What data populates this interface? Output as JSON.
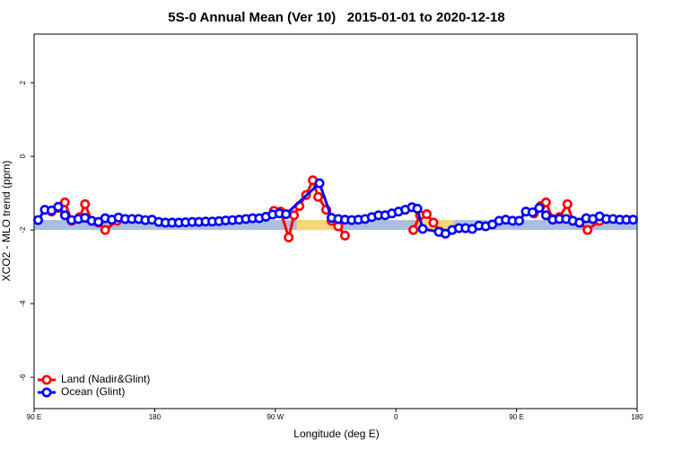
{
  "chart_data": {
    "type": "line",
    "title": "5S-0 Annual Mean (Ver 10)   2015-01-01 to 2020-12-18",
    "xlabel": "Longitude (deg E)",
    "ylabel": "XCO2 - MLO trend (ppm)",
    "xlim": [
      90,
      540
    ],
    "ylim": [
      -6.85,
      3.32
    ],
    "xticks": [
      {
        "value": 90,
        "label": "90 E"
      },
      {
        "value": 180,
        "label": "180"
      },
      {
        "value": 270,
        "label": "90 W"
      },
      {
        "value": 360,
        "label": "0"
      },
      {
        "value": 450,
        "label": "90 E"
      },
      {
        "value": 540,
        "label": "180"
      }
    ],
    "yticks": [
      -6,
      -4,
      -2,
      0,
      2
    ],
    "legend": "bottom-left",
    "bands": [
      {
        "color": "#aabfe0",
        "xlim": [
          90,
          540
        ],
        "ylim": [
          -2,
          -1.73
        ]
      },
      {
        "color": "#f7d77c",
        "xlim": [
          286,
          314
        ],
        "ylim": [
          -2,
          -1.73
        ]
      },
      {
        "color": "#f7d77c",
        "xlim": [
          376,
          403
        ],
        "ylim": [
          -2,
          -1.73
        ]
      }
    ],
    "series": [
      {
        "name": "Land (Nadir&Glint)",
        "color": "#ff0000",
        "x": [
          103,
          108,
          113,
          118,
          124,
          128,
          133,
          138,
          143,
          152,
          200,
          269,
          274,
          280,
          284,
          288,
          293,
          298,
          302,
          308,
          312,
          317,
          322,
          350,
          373,
          378,
          383,
          388,
          393,
          430,
          463,
          468,
          472,
          477,
          482,
          488,
          492,
          497,
          503,
          512
        ],
        "values": [
          -1.5,
          -1.4,
          -1.25,
          -1.75,
          -1.65,
          -1.3,
          -1.75,
          -1.8,
          -2.0,
          -1.75,
          null,
          -1.48,
          -1.5,
          -2.2,
          -1.6,
          -1.35,
          -1.05,
          -0.65,
          -1.1,
          -1.45,
          -1.75,
          -1.9,
          -2.15,
          null,
          -2.0,
          -1.6,
          -1.57,
          -1.8,
          -2.05,
          null,
          -1.55,
          -1.35,
          -1.25,
          -1.7,
          -1.65,
          -1.3,
          -1.75,
          -1.8,
          -2.0,
          -1.75
        ]
      },
      {
        "name": "Ocean (Glint)",
        "color": "#0000ff",
        "x": [
          93,
          98,
          103,
          108,
          113,
          118,
          123,
          128,
          133,
          138,
          143,
          148,
          153,
          158,
          163,
          168,
          173,
          178,
          183,
          188,
          193,
          198,
          203,
          208,
          213,
          218,
          223,
          228,
          233,
          238,
          243,
          248,
          253,
          258,
          263,
          268,
          273,
          278,
          303,
          312,
          317,
          322,
          327,
          332,
          337,
          342,
          347,
          352,
          357,
          362,
          367,
          372,
          376,
          380,
          392,
          397,
          402,
          407,
          412,
          417,
          422,
          427,
          432,
          437,
          442,
          447,
          452,
          457,
          462,
          467,
          472,
          477,
          482,
          487,
          492,
          497,
          502,
          507,
          512,
          517,
          522,
          527,
          532,
          537
        ],
        "values": [
          -1.73,
          -1.45,
          -1.47,
          -1.37,
          -1.6,
          -1.73,
          -1.7,
          -1.67,
          -1.75,
          -1.78,
          -1.68,
          -1.72,
          -1.66,
          -1.7,
          -1.7,
          -1.7,
          -1.73,
          -1.72,
          -1.78,
          -1.8,
          -1.8,
          -1.8,
          -1.79,
          -1.78,
          -1.78,
          -1.77,
          -1.77,
          -1.76,
          -1.74,
          -1.73,
          -1.72,
          -1.7,
          -1.68,
          -1.68,
          -1.64,
          -1.58,
          -1.55,
          -1.57,
          -0.73,
          -1.67,
          -1.7,
          -1.72,
          -1.73,
          -1.72,
          -1.7,
          -1.65,
          -1.6,
          -1.6,
          -1.55,
          -1.5,
          -1.45,
          -1.38,
          -1.42,
          -1.97,
          -2.05,
          -2.1,
          -2.0,
          -1.95,
          -1.95,
          -1.97,
          -1.88,
          -1.9,
          -1.85,
          -1.75,
          -1.72,
          -1.75,
          -1.75,
          -1.5,
          -1.52,
          -1.4,
          -1.6,
          -1.72,
          -1.7,
          -1.7,
          -1.75,
          -1.8,
          -1.68,
          -1.7,
          -1.63,
          -1.7,
          -1.7,
          -1.72,
          -1.72,
          -1.72
        ]
      }
    ]
  }
}
